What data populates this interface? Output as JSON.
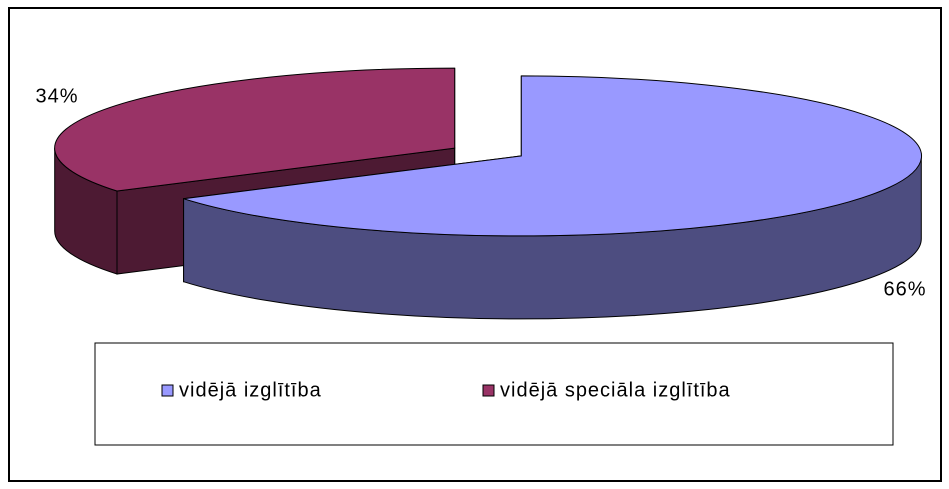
{
  "chart_data": {
    "type": "pie",
    "categories": [
      "vidējā izglītība",
      "vidējā speciāla izglītība"
    ],
    "values": [
      66,
      34
    ],
    "value_labels": [
      "66%",
      "34%"
    ],
    "colors": [
      "#9999ff",
      "#993366"
    ]
  }
}
